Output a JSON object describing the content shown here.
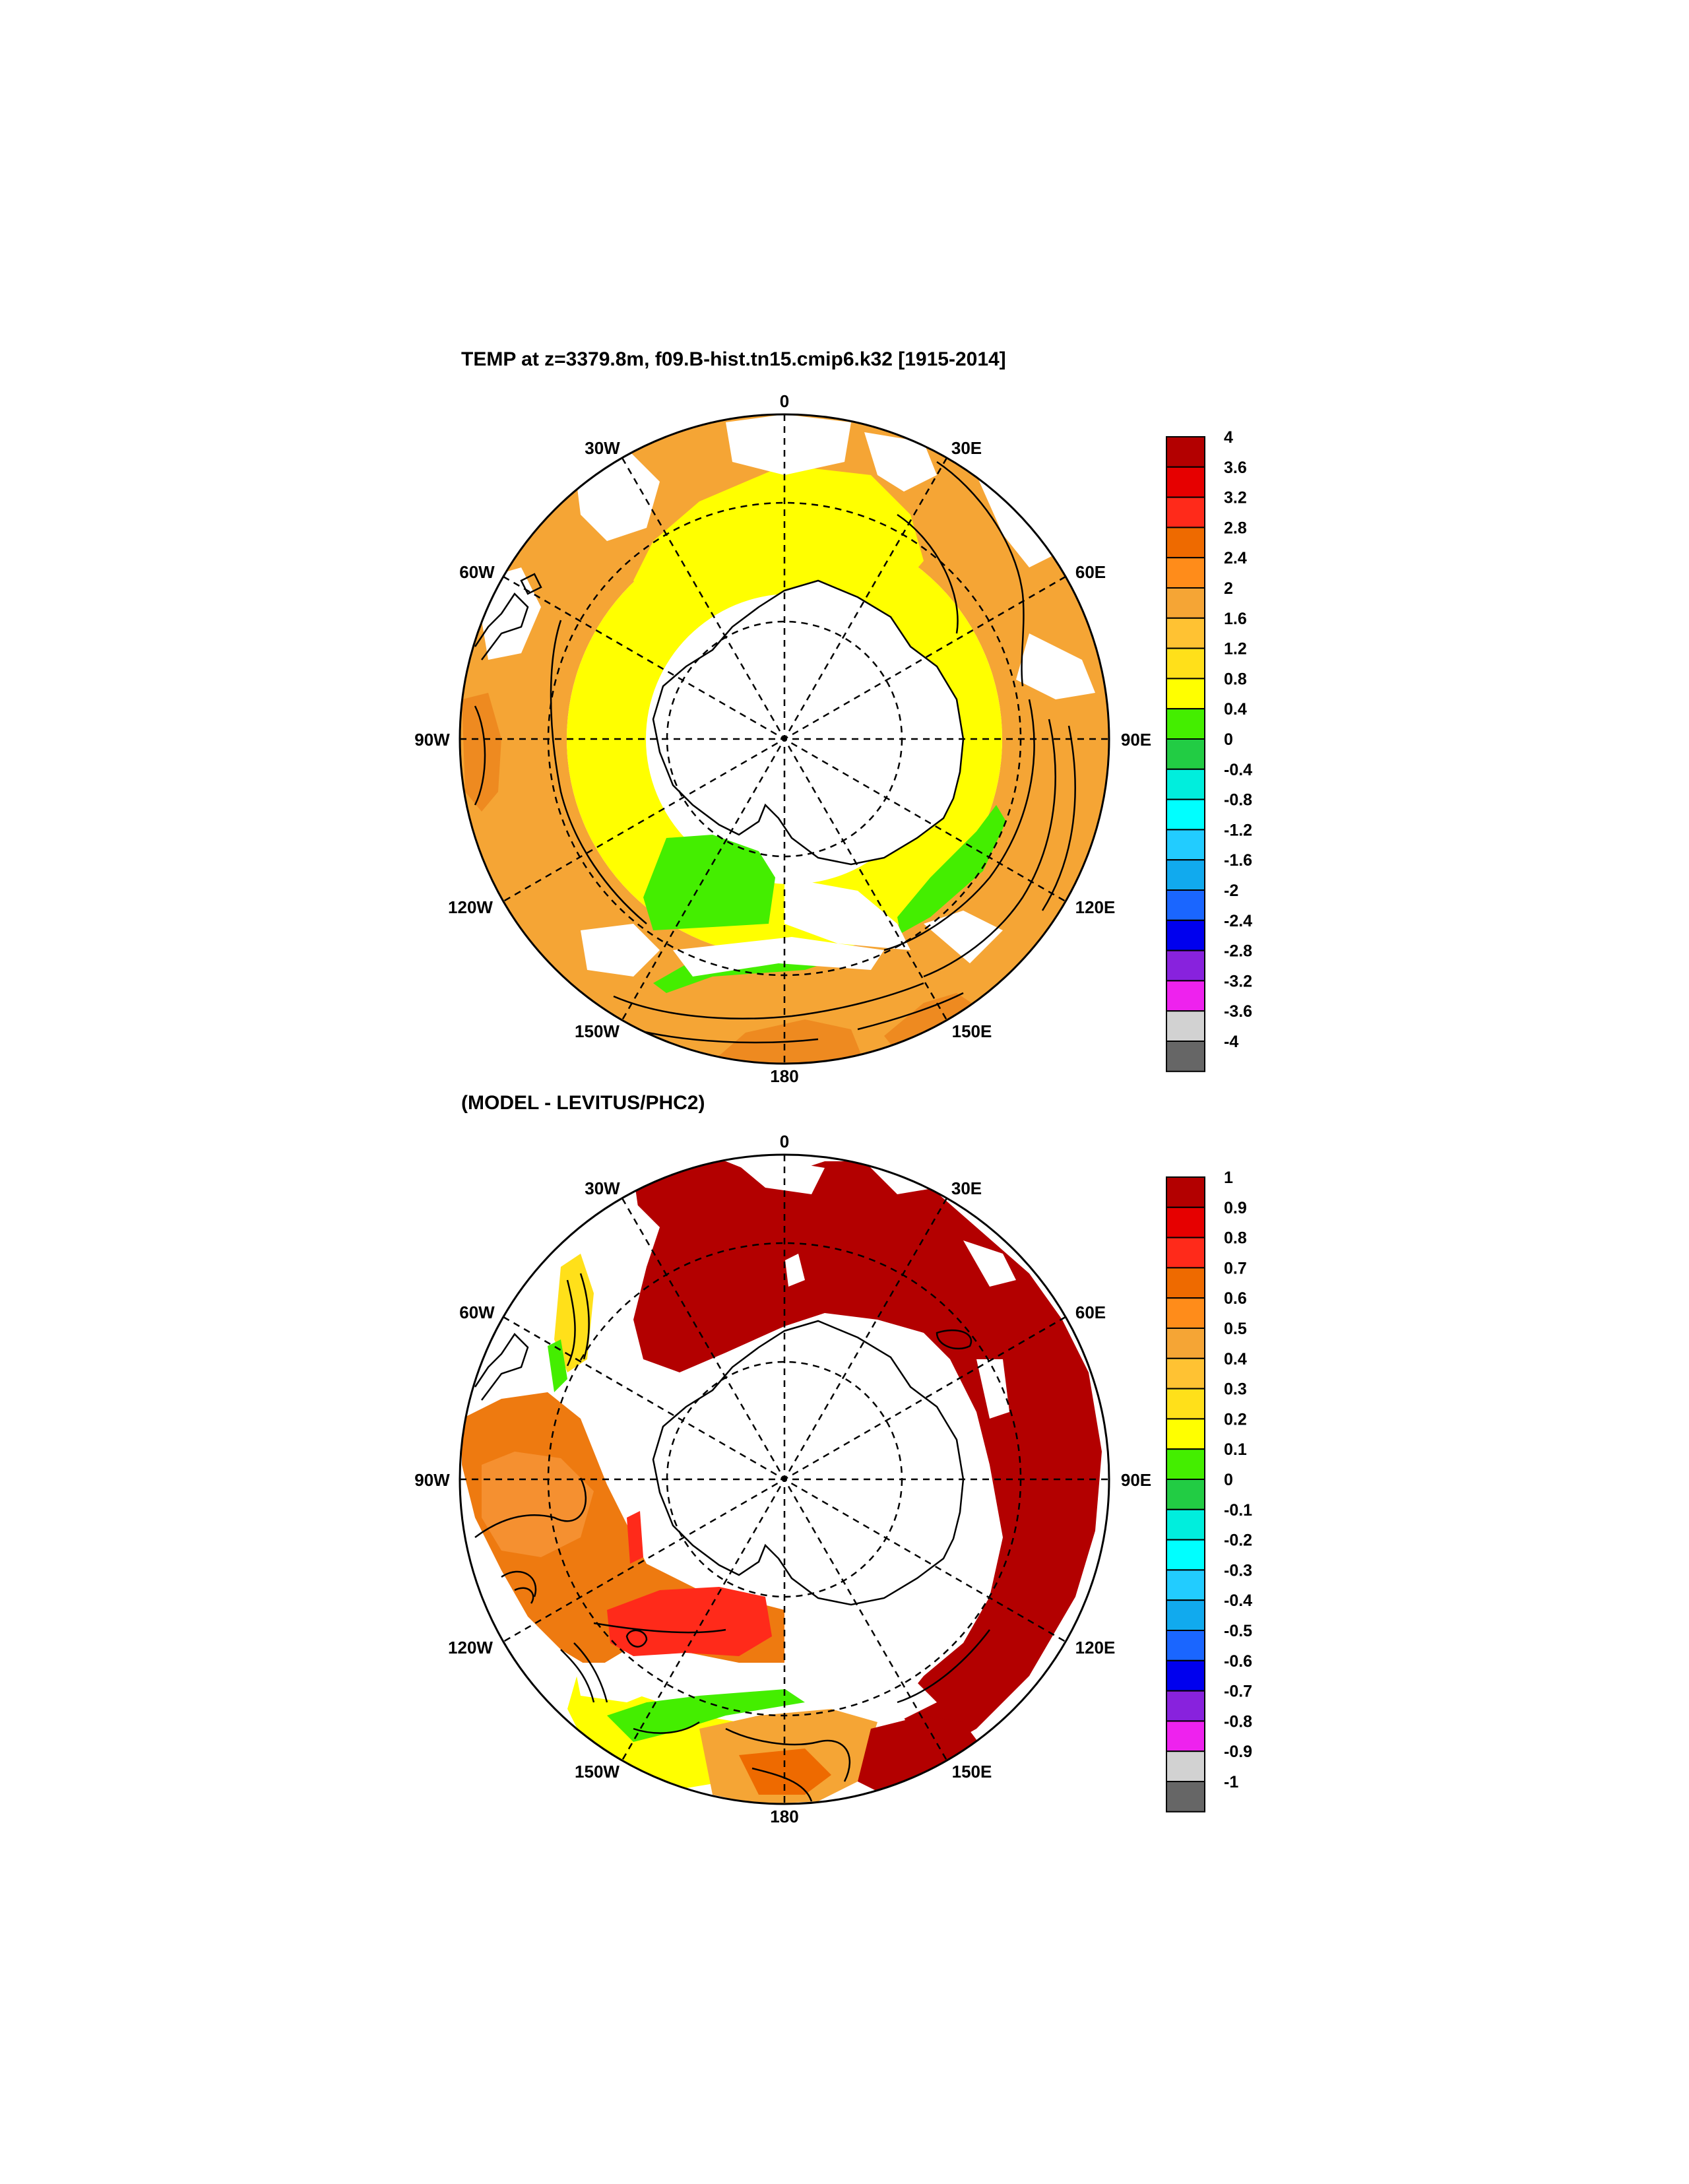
{
  "panels": [
    {
      "title": "TEMP at z=3379.8m, f09.B-hist.tn15.cmip6.k32 [1915-2014]",
      "lon_labels": [
        "0",
        "30E",
        "60E",
        "90E",
        "120E",
        "150E",
        "180",
        "150W",
        "120W",
        "90W",
        "60W",
        "30W"
      ],
      "colorbar_labels": [
        "4",
        "3.6",
        "3.2",
        "2.8",
        "2.4",
        "2",
        "1.6",
        "1.2",
        "0.8",
        "0.4",
        "0",
        "-0.4",
        "-0.8",
        "-1.2",
        "-1.6",
        "-2",
        "-2.4",
        "-2.8",
        "-3.2",
        "-3.6",
        "-4"
      ]
    },
    {
      "title": "(MODEL - LEVITUS/PHC2)",
      "lon_labels": [
        "0",
        "30E",
        "60E",
        "90E",
        "120E",
        "150E",
        "180",
        "150W",
        "120W",
        "90W",
        "60W",
        "30W"
      ],
      "colorbar_labels": [
        "1",
        "0.9",
        "0.8",
        "0.7",
        "0.6",
        "0.5",
        "0.4",
        "0.3",
        "0.2",
        "0.1",
        "0",
        "-0.1",
        "-0.2",
        "-0.3",
        "-0.4",
        "-0.5",
        "-0.6",
        "-0.7",
        "-0.8",
        "-0.9",
        "-1"
      ]
    }
  ],
  "colorbar_colors": [
    "#b30000",
    "#e60000",
    "#ff2a1a",
    "#ee6a00",
    "#ff8c1a",
    "#f5a535",
    "#ffc233",
    "#ffe01a",
    "#ffff00",
    "#44ee00",
    "#22cc44",
    "#00eedd",
    "#00ffff",
    "#22ccff",
    "#11aaee",
    "#1a66ff",
    "#0000ee",
    "#8822dd",
    "#ee22ee",
    "#d2d2d2",
    "#666666"
  ]
}
